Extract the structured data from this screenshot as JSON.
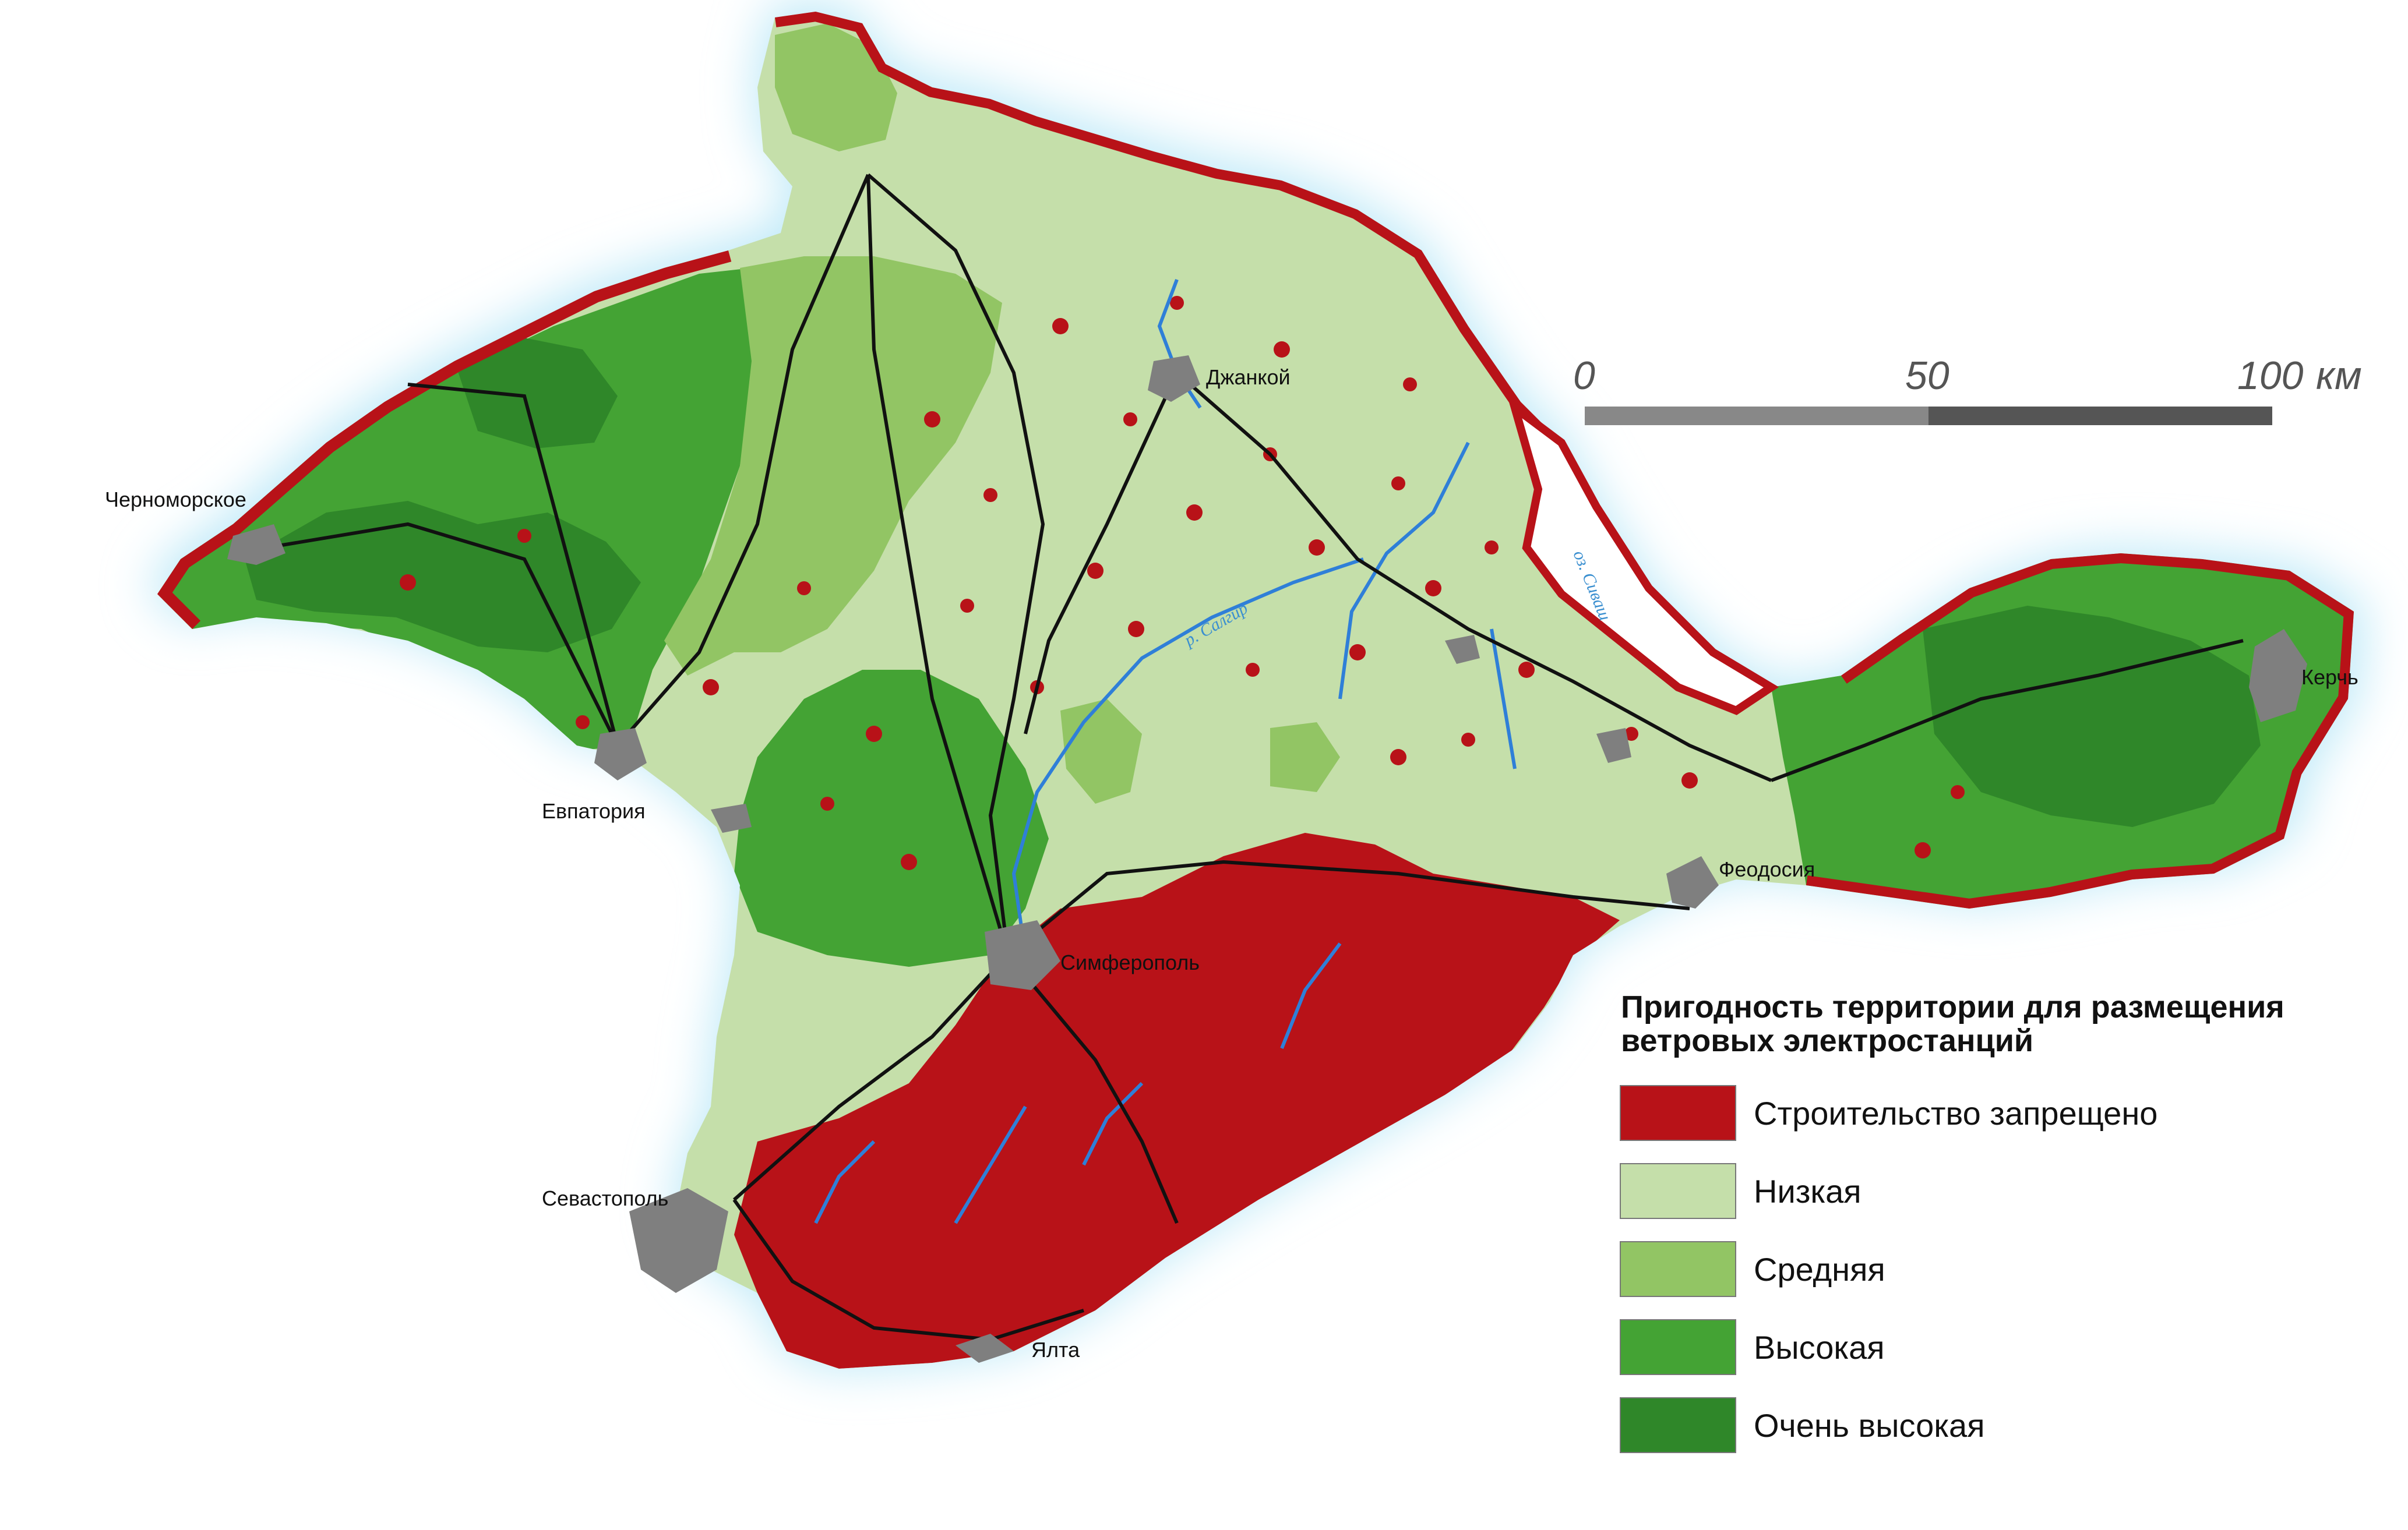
{
  "map": {
    "legend": {
      "title": "Пригодность территории для размещения ветровых электростанций",
      "items": [
        {
          "label": "Строительство запрещено",
          "color": "#b81218"
        },
        {
          "label": "Низкая",
          "color": "#c5dfaa"
        },
        {
          "label": "Средняя",
          "color": "#92c564"
        },
        {
          "label": "Высокая",
          "color": "#44a334"
        },
        {
          "label": "Очень высокая",
          "color": "#2f8729"
        }
      ]
    },
    "scale_bar": {
      "labels": [
        "0",
        "50",
        "100"
      ],
      "unit": "км"
    },
    "cities": {
      "chernomorskoe": "Черноморское",
      "dzhankoy": "Джанкой",
      "evpatoria": "Евпатория",
      "simferopol": "Симферополь",
      "kerch": "Керчь",
      "feodosia": "Феодосия",
      "sevastopol": "Севастополь",
      "yalta": "Ялта"
    },
    "water_labels": {
      "salgir": "р. Салгир",
      "sivash": "оз. Сиваш"
    },
    "colors": {
      "sea_glow": "#bfe9f8",
      "forbidden": "#b81218",
      "low": "#c5dfaa",
      "medium": "#92c564",
      "high": "#44a334",
      "very_high": "#2f8729",
      "city": "#7f7f7f",
      "road": "#111111",
      "river": "#2f7fd8"
    }
  }
}
